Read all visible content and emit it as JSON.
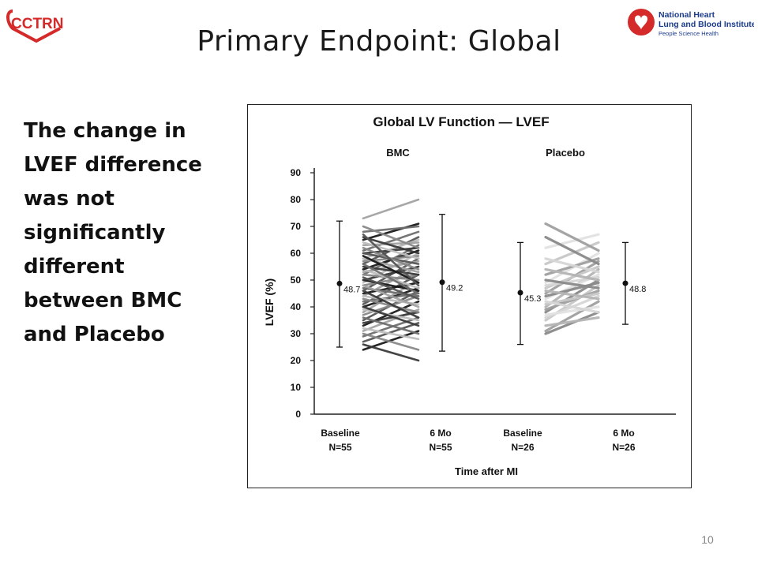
{
  "slide": {
    "title": "Primary Endpoint: Global",
    "body_lines": [
      "The change in",
      "LVEF difference",
      "was not",
      "significantly",
      "different",
      "between BMC",
      "and Placebo"
    ],
    "page_number": "10"
  },
  "logos": {
    "left_text": "CCTRN",
    "right_line1": "National Heart",
    "right_line2": "Lung and Blood Institute",
    "right_line3": "People Science Health"
  },
  "colors": {
    "logo_red": "#d42a2a",
    "logo_blue": "#1b3c8c",
    "bmc_lines": [
      "#1a1a1a",
      "#3a3a3a",
      "#555555",
      "#6e6e6e",
      "#888888",
      "#a3a3a3",
      "#bdbdbd"
    ],
    "placebo_lines": [
      "#8a8a8a",
      "#a0a0a0",
      "#b5b5b5",
      "#c8c8c8",
      "#d6d6d6",
      "#e2e2e2"
    ]
  },
  "chart_data": {
    "type": "line",
    "title": "Global LV Function — LVEF",
    "ylabel": "LVEF (%)",
    "xlabel": "Time after MI",
    "ylim": [
      0,
      90
    ],
    "yticks": [
      0,
      10,
      20,
      30,
      40,
      50,
      60,
      70,
      80,
      90
    ],
    "groups": [
      {
        "name": "BMC",
        "baseline": {
          "label": "Baseline",
          "n_label": "N=55",
          "mean": 48.7,
          "range": [
            25,
            72
          ]
        },
        "followup": {
          "label": "6 Mo",
          "n_label": "N=55",
          "mean": 49.2,
          "range": [
            23.5,
            74.5
          ]
        },
        "pairs": [
          [
            24,
            31
          ],
          [
            26,
            20
          ],
          [
            27,
            34
          ],
          [
            29,
            36
          ],
          [
            30,
            24
          ],
          [
            31,
            39
          ],
          [
            32,
            28
          ],
          [
            33,
            42
          ],
          [
            34,
            38
          ],
          [
            35,
            46
          ],
          [
            36,
            30
          ],
          [
            37,
            44
          ],
          [
            38,
            50
          ],
          [
            39,
            35
          ],
          [
            40,
            47
          ],
          [
            40,
            33
          ],
          [
            41,
            52
          ],
          [
            42,
            45
          ],
          [
            43,
            38
          ],
          [
            44,
            55
          ],
          [
            44,
            41
          ],
          [
            45,
            49
          ],
          [
            46,
            36
          ],
          [
            46,
            58
          ],
          [
            47,
            44
          ],
          [
            48,
            52
          ],
          [
            48,
            40
          ],
          [
            49,
            60
          ],
          [
            50,
            46
          ],
          [
            50,
            55
          ],
          [
            51,
            43
          ],
          [
            52,
            63
          ],
          [
            52,
            50
          ],
          [
            53,
            57
          ],
          [
            54,
            47
          ],
          [
            54,
            61
          ],
          [
            55,
            52
          ],
          [
            56,
            66
          ],
          [
            56,
            45
          ],
          [
            57,
            59
          ],
          [
            58,
            53
          ],
          [
            58,
            65
          ],
          [
            59,
            49
          ],
          [
            60,
            62
          ],
          [
            60,
            56
          ],
          [
            61,
            68
          ],
          [
            62,
            54
          ],
          [
            63,
            64
          ],
          [
            64,
            58
          ],
          [
            65,
            71
          ],
          [
            66,
            60
          ],
          [
            67,
            48
          ],
          [
            68,
            70
          ],
          [
            70,
            62
          ],
          [
            73,
            80
          ]
        ]
      },
      {
        "name": "Placebo",
        "baseline": {
          "label": "Baseline",
          "n_label": "N=26",
          "mean": 45.3,
          "range": [
            26,
            64
          ]
        },
        "followup": {
          "label": "6 Mo",
          "n_label": "N=26",
          "mean": 48.8,
          "range": [
            33.5,
            64
          ]
        },
        "pairs": [
          [
            30,
            38
          ],
          [
            31,
            42
          ],
          [
            33,
            36
          ],
          [
            35,
            48
          ],
          [
            36,
            44
          ],
          [
            37,
            40
          ],
          [
            38,
            50
          ],
          [
            39,
            46
          ],
          [
            40,
            54
          ],
          [
            41,
            45
          ],
          [
            42,
            38
          ],
          [
            43,
            52
          ],
          [
            44,
            49
          ],
          [
            45,
            57
          ],
          [
            46,
            43
          ],
          [
            47,
            55
          ],
          [
            48,
            51
          ],
          [
            49,
            60
          ],
          [
            50,
            47
          ],
          [
            52,
            58
          ],
          [
            54,
            50
          ],
          [
            56,
            64
          ],
          [
            58,
            53
          ],
          [
            62,
            67
          ],
          [
            66,
            56
          ],
          [
            71,
            61
          ]
        ]
      }
    ]
  }
}
